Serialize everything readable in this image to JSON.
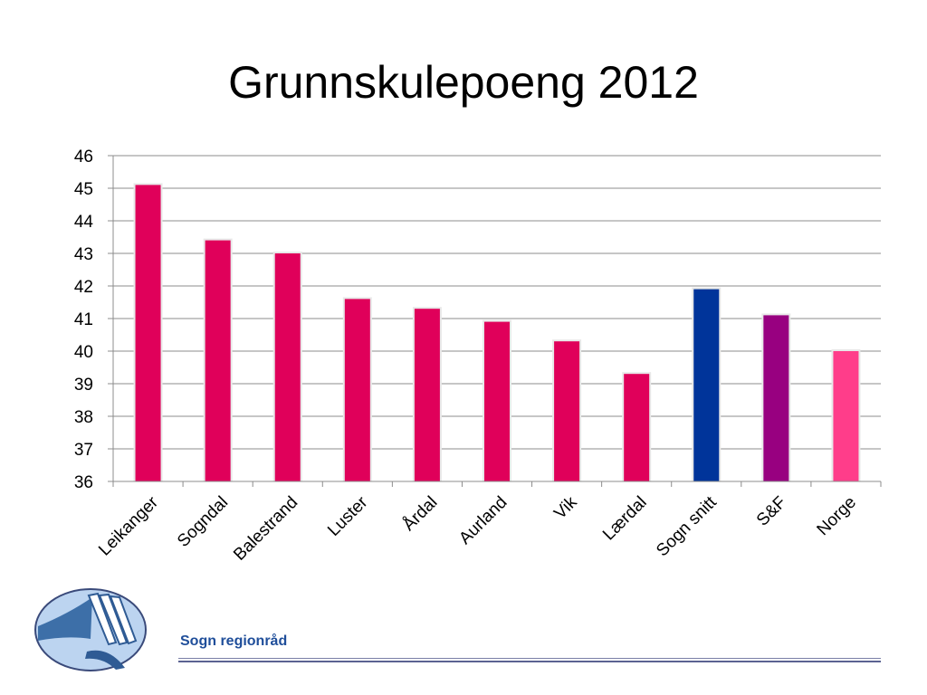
{
  "title": "Grunnskulepoeng 2012",
  "footer": {
    "org_name": "Sogn regionråd"
  },
  "logo": {
    "icon": "sogn-regionrad-logo-icon"
  },
  "chart_data": {
    "type": "bar",
    "title": "Grunnskulepoeng 2012",
    "xlabel": "",
    "ylabel": "",
    "ylim": [
      36,
      46
    ],
    "yticks": [
      36,
      37,
      38,
      39,
      40,
      41,
      42,
      43,
      44,
      45,
      46
    ],
    "grid": true,
    "legend": "none",
    "categories": [
      "Leikanger",
      "Sogndal",
      "Balestrand",
      "Luster",
      "Årdal",
      "Aurland",
      "Vik",
      "Lærdal",
      "Sogn snitt",
      "S&F",
      "Norge"
    ],
    "values": [
      45.1,
      43.4,
      43.0,
      41.6,
      41.3,
      40.9,
      40.3,
      39.3,
      41.9,
      41.1,
      40.0
    ],
    "colors": [
      "#E0005A",
      "#E0005A",
      "#E0005A",
      "#E0005A",
      "#E0005A",
      "#E0005A",
      "#E0005A",
      "#E0005A",
      "#00349A",
      "#980080",
      "#FF3D8A"
    ]
  }
}
